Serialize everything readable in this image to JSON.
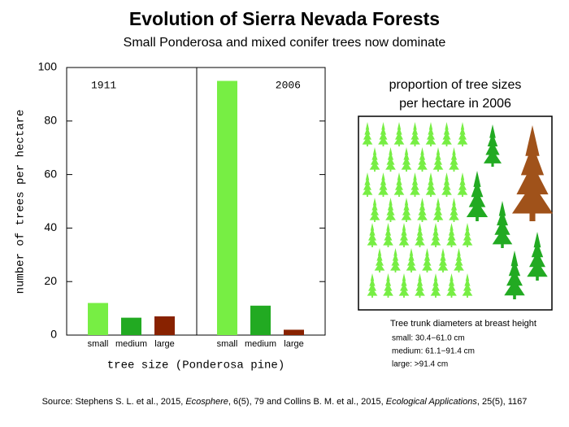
{
  "chart_data": {
    "type": "bar",
    "title": "Evolution of Sierra Nevada Forests",
    "subtitle": "Small Ponderosa and mixed conifer trees now dominate",
    "ylabel": "number of trees per hectare",
    "xlabel": "tree size (Ponderosa pine)",
    "categories": [
      "small",
      "medium",
      "large"
    ],
    "colors": [
      "#77ee44",
      "#22aa22",
      "#882200"
    ],
    "panels": [
      {
        "label": "1911",
        "values": [
          12,
          6.5,
          7
        ]
      },
      {
        "label": "2006",
        "values": [
          95,
          11,
          2
        ]
      }
    ],
    "ylim": [
      0,
      100
    ],
    "yticks": [
      0,
      20,
      40,
      60,
      80,
      100
    ]
  },
  "illustration": {
    "title": [
      "proportion of tree sizes",
      "per hectare in 2006"
    ],
    "notes": [
      "Tree trunk diameters at breast height",
      "small:  30.4−61.0 cm",
      "medium:  61.1−91.4 cm",
      "large:  >91.4 cm"
    ]
  },
  "source": [
    "Source: Stephens S. L. et al., 2015, ",
    "Ecosphere",
    ", 6(5), 79 and Collins B. M. et al., 2015, ",
    "Ecological Applications",
    ", 25(5), 1167"
  ]
}
